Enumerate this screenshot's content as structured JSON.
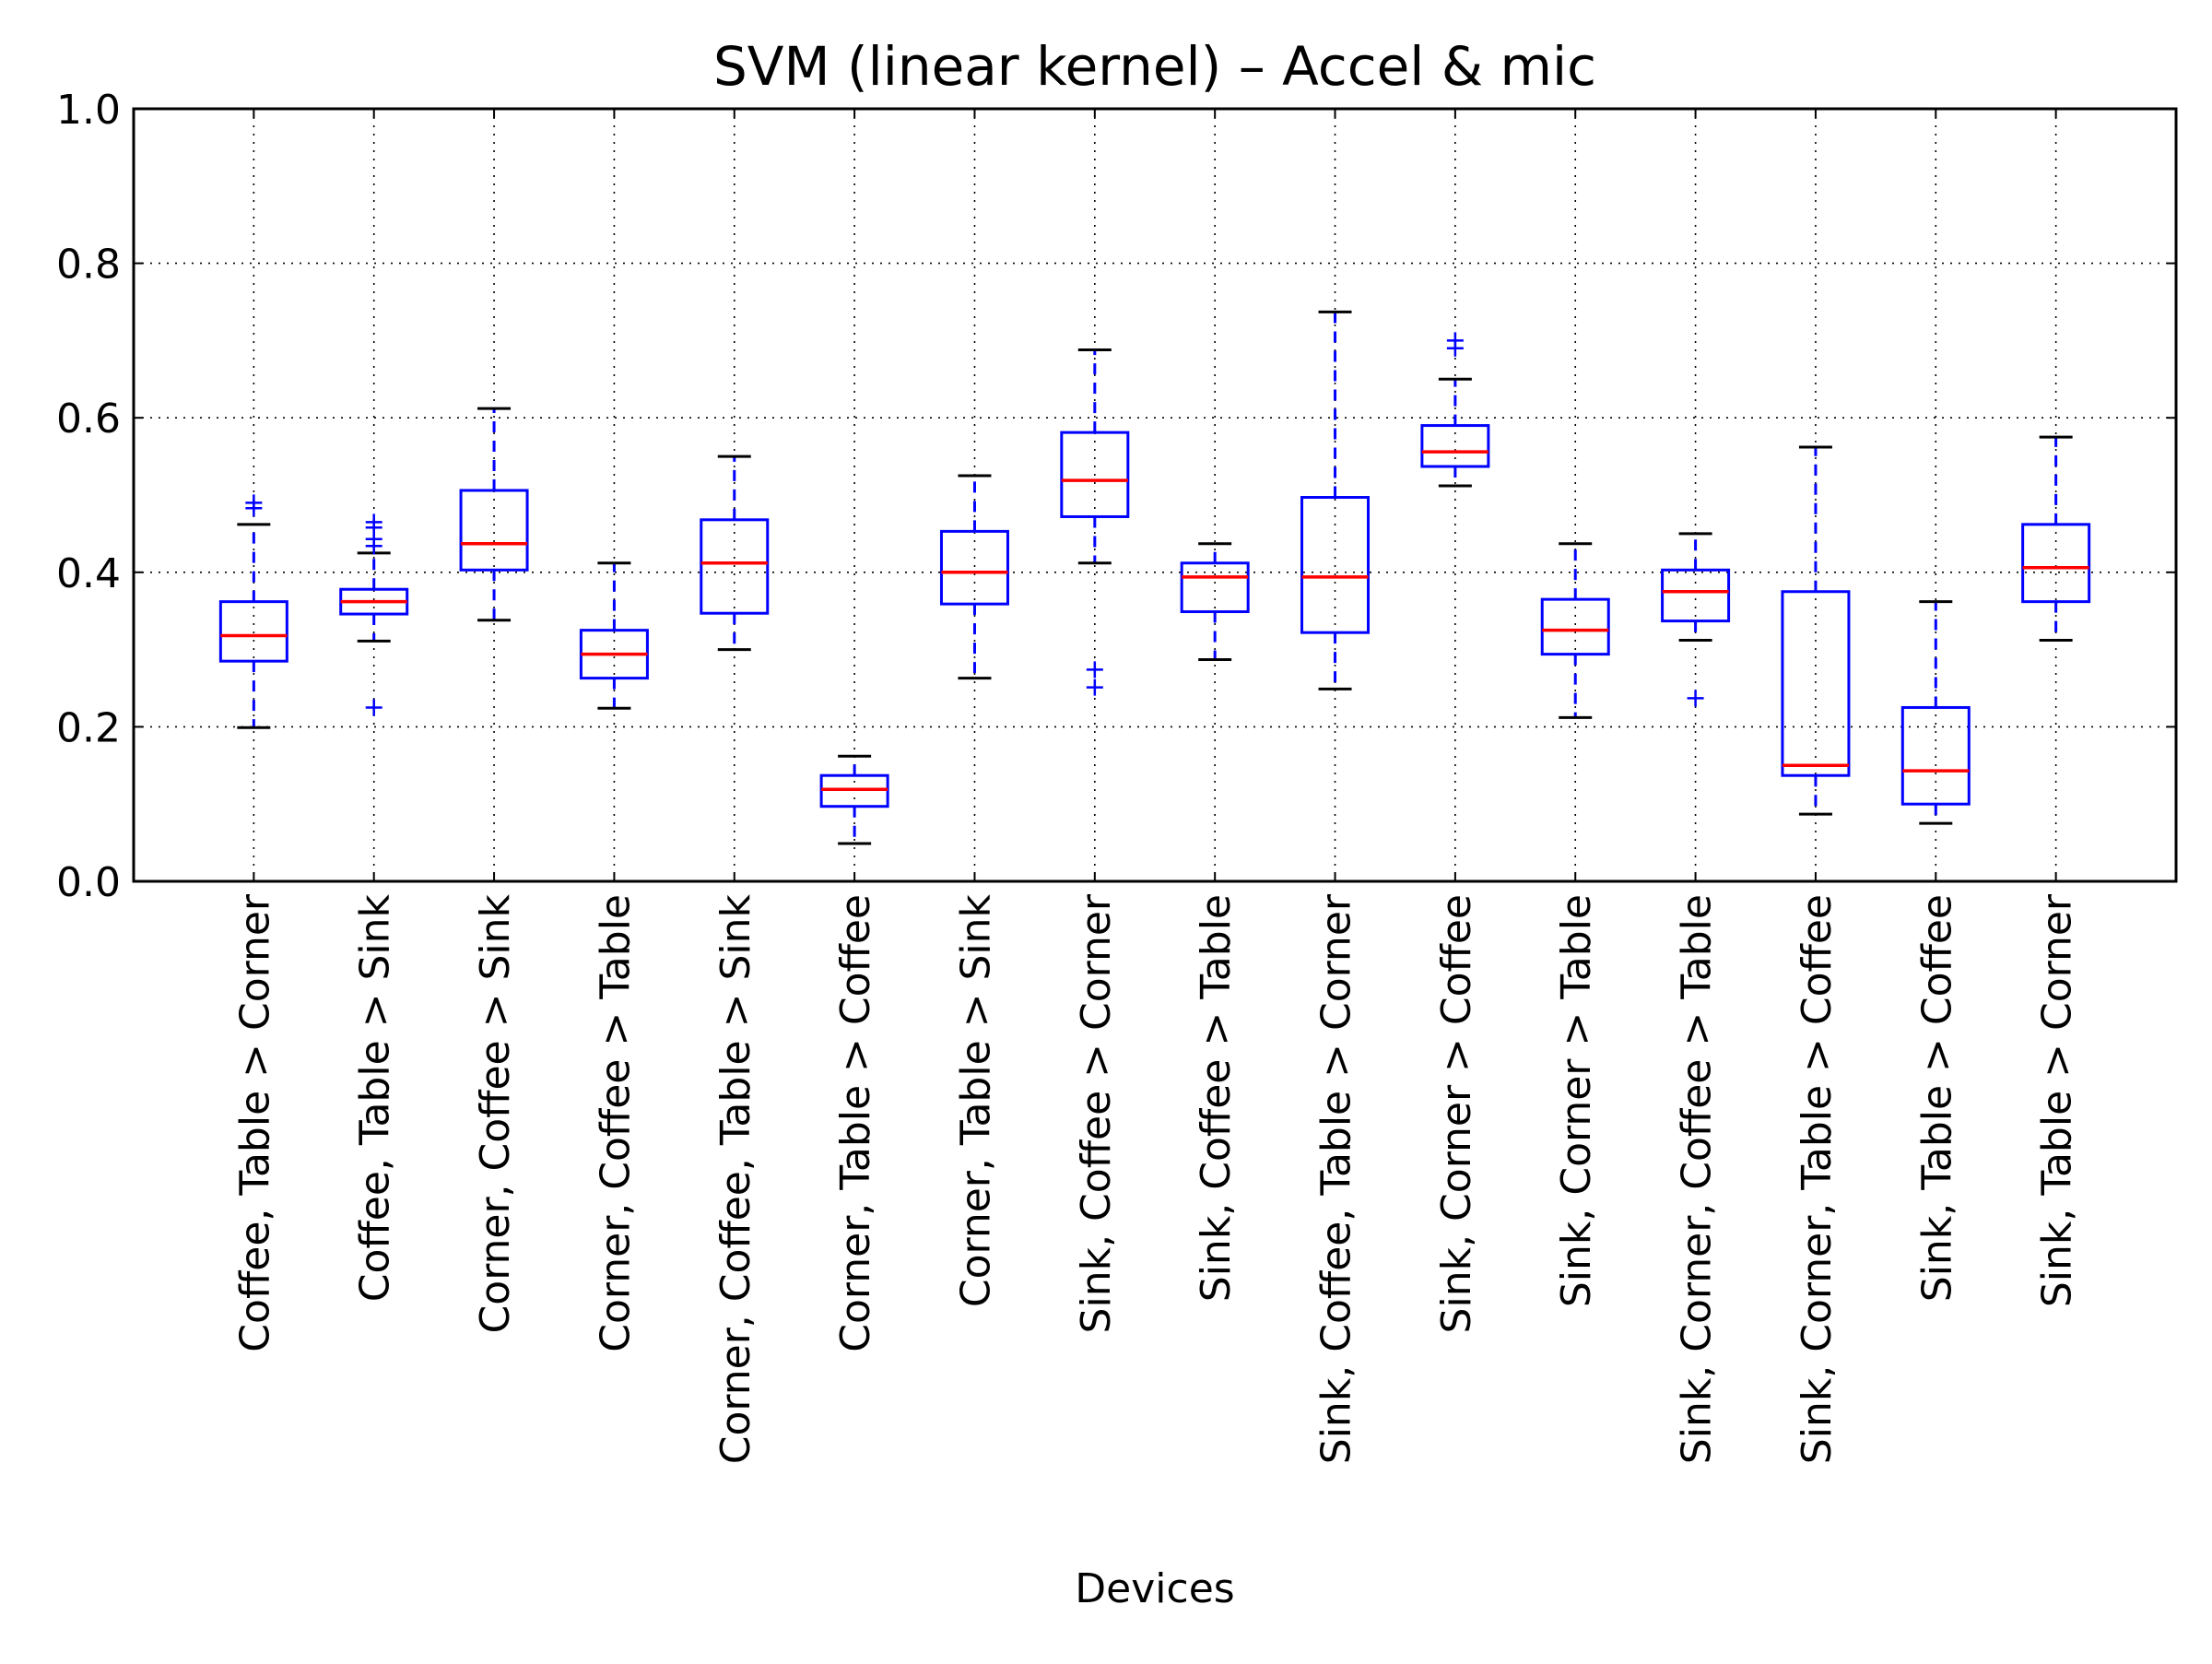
{
  "chart_data": {
    "type": "box",
    "title": "SVM (linear kernel) – Accel & mic",
    "xlabel": "Devices",
    "ylabel": "",
    "ylim": [
      0.0,
      1.0
    ],
    "yticks": [
      "0.0",
      "0.2",
      "0.4",
      "0.6",
      "0.8",
      "1.0"
    ],
    "grid": true,
    "colors": {
      "box": "#0000ff",
      "median": "#ff0000",
      "cap": "#000000",
      "flier": "#0000ff"
    },
    "categories": [
      "Coffee, Table > Corner",
      "Coffee, Table > Sink",
      "Corner, Coffee > Sink",
      "Corner, Coffee > Table",
      "Corner, Coffee, Table > Sink",
      "Corner, Table > Coffee",
      "Corner, Table > Sink",
      "Sink, Coffee > Corner",
      "Sink, Coffee > Table",
      "Sink, Coffee, Table > Corner",
      "Sink, Corner > Coffee",
      "Sink, Corner > Table",
      "Sink, Corner, Coffee > Table",
      "Sink, Corner, Table > Coffee",
      "Sink, Table > Coffee",
      "Sink, Table > Corner"
    ],
    "boxes": [
      {
        "whislo": 0.199,
        "q1": 0.285,
        "med": 0.318,
        "q3": 0.362,
        "whishi": 0.462,
        "fliers": [
          0.483,
          0.49
        ]
      },
      {
        "whislo": 0.311,
        "q1": 0.346,
        "med": 0.362,
        "q3": 0.378,
        "whishi": 0.425,
        "fliers": [
          0.225,
          0.434,
          0.443,
          0.458,
          0.465
        ]
      },
      {
        "whislo": 0.338,
        "q1": 0.403,
        "med": 0.437,
        "q3": 0.506,
        "whishi": 0.612,
        "fliers": []
      },
      {
        "whislo": 0.224,
        "q1": 0.263,
        "med": 0.294,
        "q3": 0.325,
        "whishi": 0.412,
        "fliers": []
      },
      {
        "whislo": 0.3,
        "q1": 0.347,
        "med": 0.412,
        "q3": 0.468,
        "whishi": 0.55,
        "fliers": []
      },
      {
        "whislo": 0.049,
        "q1": 0.097,
        "med": 0.119,
        "q3": 0.137,
        "whishi": 0.162,
        "fliers": []
      },
      {
        "whislo": 0.263,
        "q1": 0.359,
        "med": 0.4,
        "q3": 0.453,
        "whishi": 0.525,
        "fliers": []
      },
      {
        "whislo": 0.412,
        "q1": 0.472,
        "med": 0.519,
        "q3": 0.581,
        "whishi": 0.688,
        "fliers": [
          0.251,
          0.274
        ]
      },
      {
        "whislo": 0.287,
        "q1": 0.349,
        "med": 0.394,
        "q3": 0.412,
        "whishi": 0.437,
        "fliers": []
      },
      {
        "whislo": 0.249,
        "q1": 0.322,
        "med": 0.394,
        "q3": 0.497,
        "whishi": 0.737,
        "fliers": []
      },
      {
        "whislo": 0.512,
        "q1": 0.537,
        "med": 0.556,
        "q3": 0.59,
        "whishi": 0.65,
        "fliers": [
          0.69,
          0.7
        ]
      },
      {
        "whislo": 0.212,
        "q1": 0.294,
        "med": 0.325,
        "q3": 0.365,
        "whishi": 0.437,
        "fliers": []
      },
      {
        "whislo": 0.312,
        "q1": 0.337,
        "med": 0.375,
        "q3": 0.403,
        "whishi": 0.45,
        "fliers": [
          0.237
        ]
      },
      {
        "whislo": 0.087,
        "q1": 0.137,
        "med": 0.15,
        "q3": 0.375,
        "whishi": 0.562,
        "fliers": []
      },
      {
        "whislo": 0.075,
        "q1": 0.1,
        "med": 0.143,
        "q3": 0.225,
        "whishi": 0.362,
        "fliers": []
      },
      {
        "whislo": 0.312,
        "q1": 0.362,
        "med": 0.406,
        "q3": 0.462,
        "whishi": 0.575,
        "fliers": []
      }
    ]
  }
}
